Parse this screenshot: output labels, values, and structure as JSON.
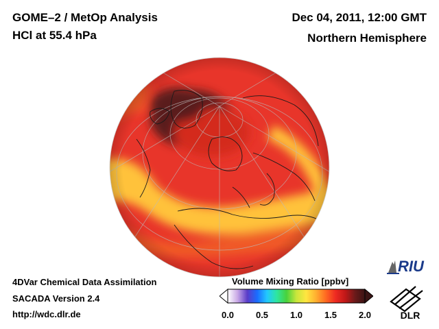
{
  "header": {
    "title_line1": "GOME–2 / MetOp Analysis",
    "title_line2": "HCl at 55.4 hPa",
    "date": "Dec 04, 2011, 12:00 GMT",
    "region": "Northern Hemisphere"
  },
  "footer": {
    "line1": "4DVar Chemical Data Assimilation",
    "line2": "SACADA Version 2.4",
    "line3": "http://wdc.dlr.de"
  },
  "colorbar": {
    "title": "Volume Mixing Ratio [ppbv]",
    "ticks": [
      "0.0",
      "0.5",
      "1.0",
      "1.5",
      "2.0"
    ],
    "range": [
      0.0,
      2.0
    ],
    "colors": [
      "#ffffff",
      "#c9a8e6",
      "#5a3cc8",
      "#1a6cff",
      "#22c8ff",
      "#2ee6a0",
      "#48d23c",
      "#c8e63c",
      "#ffe640",
      "#ffb030",
      "#ff6a22",
      "#ee2a22",
      "#c01818",
      "#6a1a1a",
      "#3a1414"
    ]
  },
  "logos": {
    "riu": "RIU",
    "dlr": "DLR"
  },
  "map": {
    "projection": "orthographic",
    "features": [
      "coastlines",
      "graticule"
    ],
    "colors": {
      "high": "#5a1e1e",
      "mid_high": "#d42a1e",
      "mid": "#f05a28",
      "low": "#ffc23a",
      "edge": "#e8352a"
    }
  }
}
